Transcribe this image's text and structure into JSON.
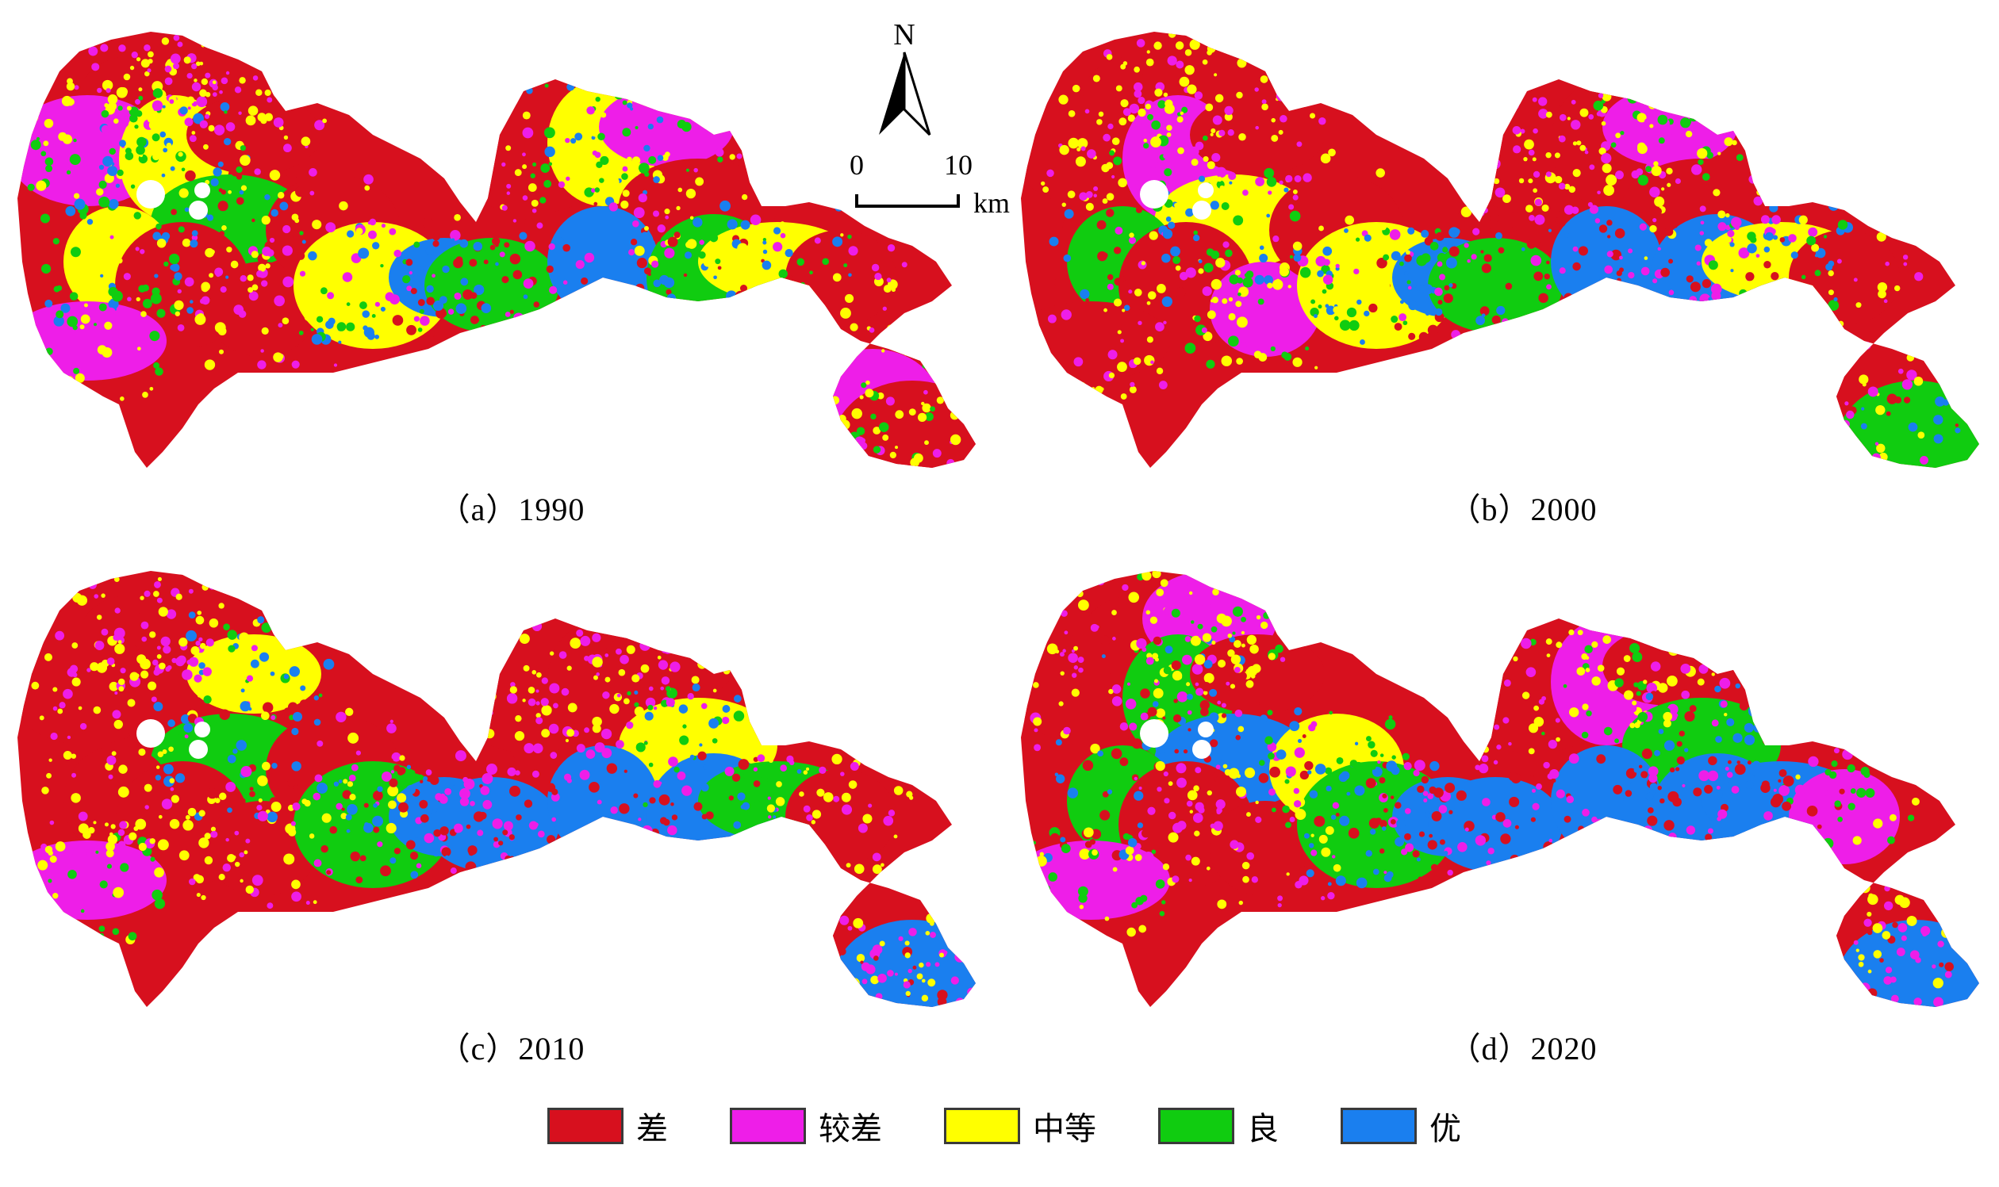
{
  "panels": [
    {
      "label": "（a）1990",
      "pattern": [
        0,
        0,
        1,
        2,
        0,
        3,
        2,
        0,
        1,
        0,
        0,
        2,
        4,
        3,
        0,
        2,
        1,
        0,
        4,
        3,
        2,
        0,
        1,
        0
      ]
    },
    {
      "label": "（b）2000",
      "pattern": [
        0,
        0,
        0,
        1,
        0,
        2,
        3,
        0,
        0,
        1,
        0,
        2,
        4,
        3,
        0,
        0,
        1,
        0,
        4,
        4,
        2,
        0,
        0,
        3
      ]
    },
    {
      "label": "（c）2010",
      "pattern": [
        0,
        0,
        0,
        0,
        2,
        3,
        0,
        0,
        1,
        0,
        0,
        3,
        4,
        4,
        0,
        0,
        0,
        2,
        4,
        4,
        3,
        0,
        0,
        4
      ]
    },
    {
      "label": "（d）2020",
      "pattern": [
        0,
        1,
        0,
        3,
        0,
        4,
        3,
        0,
        1,
        0,
        2,
        3,
        4,
        4,
        0,
        1,
        0,
        3,
        4,
        4,
        4,
        1,
        0,
        4
      ]
    }
  ],
  "compass": {
    "north": "N",
    "scale_start": "0",
    "scale_end": "10",
    "unit": "km"
  },
  "legend": [
    {
      "label": "差",
      "color": "#d7101e"
    },
    {
      "label": "较差",
      "color": "#ee1ee8"
    },
    {
      "label": "中等",
      "color": "#ffff00"
    },
    {
      "label": "良",
      "color": "#10cc10"
    },
    {
      "label": "优",
      "color": "#1a7fef"
    }
  ]
}
